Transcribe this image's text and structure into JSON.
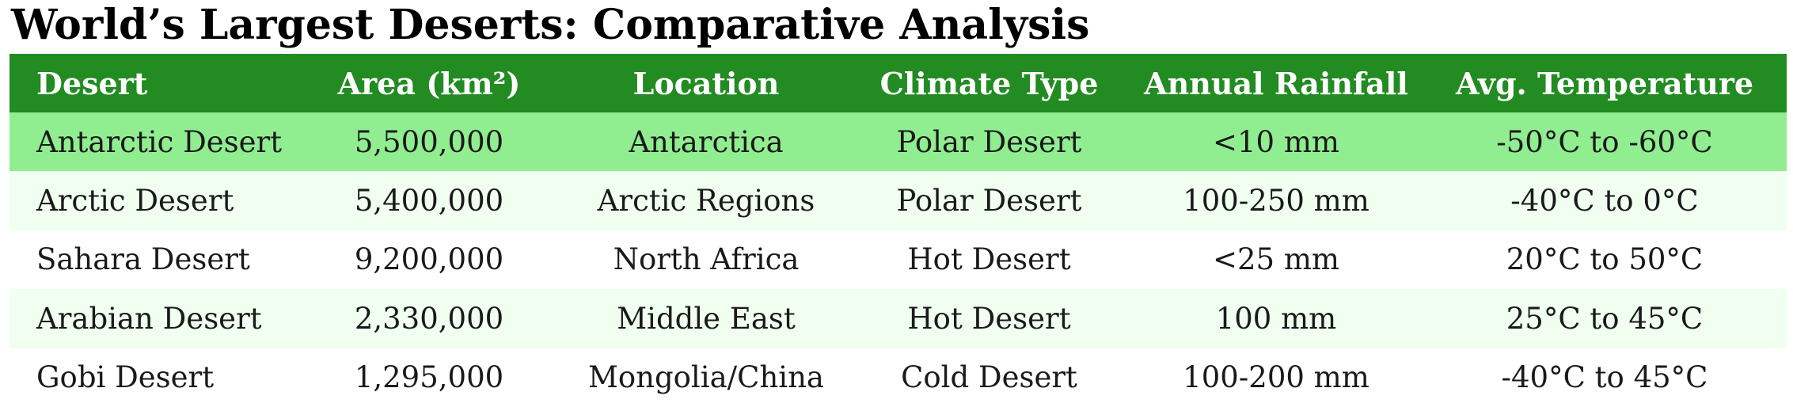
{
  "title": "World’s Largest Deserts: Comparative Analysis",
  "colors": {
    "header_bg": "#228b22",
    "header_text": "#ffffff",
    "highlight_row": "#90ee90",
    "alt_row": "#f0fff0",
    "plain_row": "#ffffff"
  },
  "table": {
    "columns": [
      "Desert",
      "Area (km²)",
      "Location",
      "Climate Type",
      "Annual Rainfall",
      "Avg. Temperature"
    ],
    "rows": [
      [
        "Antarctic Desert",
        "5,500,000",
        "Antarctica",
        "Polar Desert",
        "<10 mm",
        "-50°C to -60°C"
      ],
      [
        "Arctic Desert",
        "5,400,000",
        "Arctic Regions",
        "Polar Desert",
        "100-250 mm",
        "-40°C to 0°C"
      ],
      [
        "Sahara Desert",
        "9,200,000",
        "North Africa",
        "Hot Desert",
        "<25 mm",
        "20°C to 50°C"
      ],
      [
        "Arabian Desert",
        "2,330,000",
        "Middle East",
        "Hot Desert",
        "100 mm",
        "25°C to 45°C"
      ],
      [
        "Gobi Desert",
        "1,295,000",
        "Mongolia/China",
        "Cold Desert",
        "100-200 mm",
        "-40°C to 45°C"
      ]
    ]
  }
}
